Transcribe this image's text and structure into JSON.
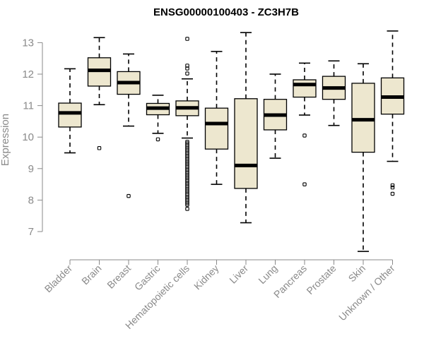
{
  "chart_data": {
    "type": "boxplot",
    "title": "ENSG00000100403 - ZC3H7B",
    "xlabel": "",
    "ylabel": "Expression",
    "ylim": [
      6.3,
      13.5
    ],
    "yticks": [
      7,
      8,
      9,
      10,
      11,
      12,
      13
    ],
    "box_color": "#ede7cf",
    "categories": [
      "Bladder",
      "Brain",
      "Breast",
      "Gastric",
      "Hematopoietic cells",
      "Kidney",
      "Liver",
      "Lung",
      "Pancreas",
      "Prostate",
      "Skin",
      "Unknown / Other"
    ],
    "series": [
      {
        "name": "Bladder",
        "min": 9.5,
        "q1": 10.32,
        "median": 10.77,
        "q3": 11.08,
        "max": 12.17,
        "outliers": []
      },
      {
        "name": "Brain",
        "min": 11.03,
        "q1": 11.62,
        "median": 12.12,
        "q3": 12.52,
        "max": 13.16,
        "outliers": [
          9.65
        ]
      },
      {
        "name": "Breast",
        "min": 10.35,
        "q1": 11.36,
        "median": 11.73,
        "q3": 12.08,
        "max": 12.64,
        "outliers": [
          8.13
        ]
      },
      {
        "name": "Gastric",
        "min": 10.12,
        "q1": 10.71,
        "median": 10.92,
        "q3": 11.07,
        "max": 11.33,
        "outliers": [
          9.93
        ]
      },
      {
        "name": "Hematopoietic cells",
        "min": 9.97,
        "q1": 10.68,
        "median": 10.93,
        "q3": 11.15,
        "max": 11.85,
        "outliers": [
          13.12,
          12.27,
          12.18,
          12.02,
          9.85,
          9.8,
          9.75,
          9.7,
          9.65,
          9.6,
          9.55,
          9.5,
          9.45,
          9.4,
          9.35,
          9.3,
          9.25,
          9.2,
          9.15,
          9.1,
          9.05,
          9.0,
          8.95,
          8.9,
          8.85,
          8.8,
          8.75,
          8.7,
          8.65,
          8.6,
          8.55,
          8.5,
          8.45,
          8.4,
          8.35,
          8.3,
          8.25,
          8.2,
          8.15,
          8.1,
          8.05,
          8.0,
          7.95,
          7.9,
          7.85,
          7.72
        ]
      },
      {
        "name": "Kidney",
        "min": 8.5,
        "q1": 9.62,
        "median": 10.43,
        "q3": 10.92,
        "max": 12.72,
        "outliers": []
      },
      {
        "name": "Liver",
        "min": 7.28,
        "q1": 8.37,
        "median": 9.1,
        "q3": 11.22,
        "max": 13.32,
        "outliers": []
      },
      {
        "name": "Lung",
        "min": 9.33,
        "q1": 10.23,
        "median": 10.7,
        "q3": 11.2,
        "max": 12.0,
        "outliers": []
      },
      {
        "name": "Pancreas",
        "min": 10.7,
        "q1": 11.27,
        "median": 11.67,
        "q3": 11.82,
        "max": 12.35,
        "outliers": [
          10.05,
          8.5
        ]
      },
      {
        "name": "Prostate",
        "min": 10.37,
        "q1": 11.2,
        "median": 11.56,
        "q3": 11.93,
        "max": 12.42,
        "outliers": []
      },
      {
        "name": "Skin",
        "min": 6.37,
        "q1": 9.52,
        "median": 10.55,
        "q3": 11.71,
        "max": 12.33,
        "outliers": []
      },
      {
        "name": "Unknown / Other",
        "min": 9.23,
        "q1": 10.73,
        "median": 11.27,
        "q3": 11.88,
        "max": 13.37,
        "outliers": [
          8.47,
          8.4,
          8.2
        ]
      }
    ]
  }
}
